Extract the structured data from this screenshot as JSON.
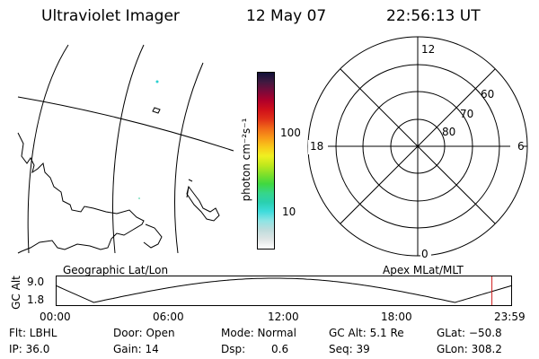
{
  "header": {
    "instrument": "Ultraviolet Imager",
    "date": "12 May 07",
    "time": "22:56:13 UT"
  },
  "colorbar": {
    "label": "photon cm⁻²s⁻¹",
    "ticks": [
      "100",
      "10"
    ],
    "colors": [
      "#ffffff",
      "#dfe5e5",
      "#bfdcdc",
      "#8ee4e4",
      "#3fdcdc",
      "#2ad0b0",
      "#36d68a",
      "#40d840",
      "#7fe02a",
      "#bfe81c",
      "#f0f020",
      "#f8c81a",
      "#f89818",
      "#f06818",
      "#e03018",
      "#d0101a",
      "#b0002a",
      "#7a0a3a",
      "#401a40",
      "#101038"
    ]
  },
  "polar": {
    "mlt_labels": {
      "top": "12",
      "bottom": "0",
      "left": "18",
      "right": "6"
    },
    "lat_labels": [
      "60",
      "70",
      "80"
    ]
  },
  "geo_plot": {
    "left_label": "Geographic Lat/Lon",
    "right_label": "Apex MLat/MLT"
  },
  "alt_plot": {
    "ylabel": "GC Alt",
    "yticks": [
      "9.0",
      "1.8"
    ],
    "xticks": [
      "00:00",
      "06:00",
      "12:00",
      "18:00",
      "23:59"
    ],
    "marker_time_hours": 22.94
  },
  "footer": {
    "filter": "Flt: LBHL",
    "door": "Door: Open",
    "mode": "Mode: Normal",
    "gc_alt": "GC Alt: 5.1 Re",
    "glat": "GLat: −50.8",
    "ip": "IP: 36.0",
    "gain": "Gain: 14",
    "dsp_label": "Dsp:",
    "dsp_value": "0.6",
    "seq": "Seq: 39",
    "glon": "GLon: 308.2"
  }
}
